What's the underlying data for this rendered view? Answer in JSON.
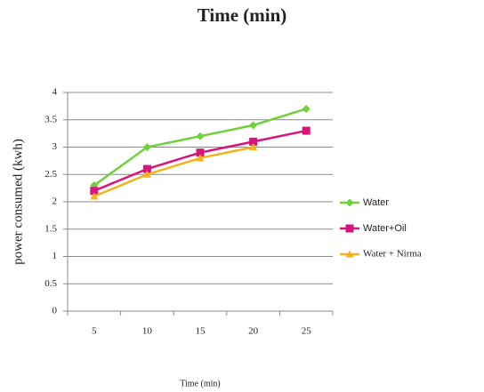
{
  "chart_data": {
    "type": "line",
    "title": "Time (min)",
    "x_label": "Time (min)",
    "y_label": "power consumed (kwh)",
    "categories": [
      "5",
      "10",
      "15",
      "20",
      "25"
    ],
    "series": [
      {
        "name": "Water",
        "color": "#6fd13a",
        "marker": "diamond",
        "values": [
          2.3,
          3.0,
          3.2,
          3.4,
          3.7
        ]
      },
      {
        "name": "Water+Oil",
        "color": "#d6147a",
        "marker": "square",
        "values": [
          2.2,
          2.6,
          2.9,
          3.1,
          3.3
        ]
      },
      {
        "name": "Water + Nirma",
        "color": "#f7b21b",
        "marker": "triangle",
        "values": [
          2.1,
          2.5,
          2.8,
          3.0,
          null
        ]
      }
    ],
    "ylim": [
      0,
      4
    ],
    "yticks": [
      0,
      0.5,
      1,
      1.5,
      2,
      2.5,
      3,
      3.5,
      4
    ],
    "grid": true,
    "legend": "right"
  }
}
